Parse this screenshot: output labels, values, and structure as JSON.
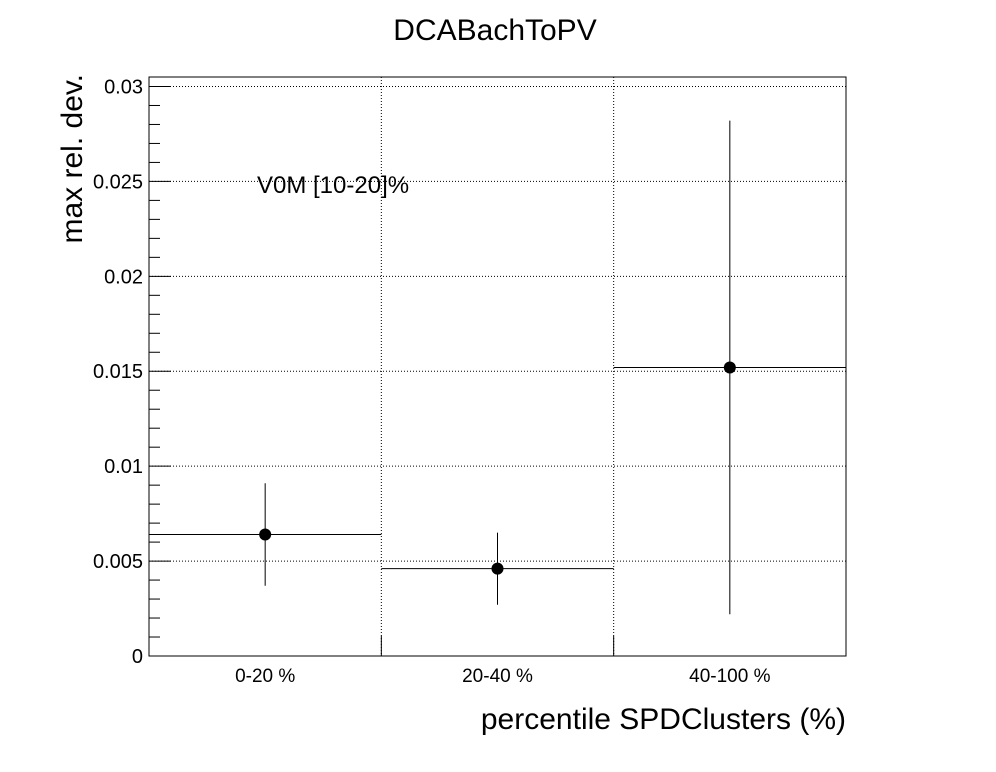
{
  "chart_data": {
    "type": "scatter",
    "title": "DCABachToPV",
    "xlabel": "percentile SPDClusters (%)",
    "ylabel": "max rel. dev.",
    "annotation": "V0M [10-20]%",
    "categories": [
      "0-20 %",
      "20-40 %",
      "40-100 %"
    ],
    "ylim": [
      0,
      0.0305
    ],
    "yticks": [
      {
        "value": 0,
        "label": "0"
      },
      {
        "value": 0.005,
        "label": "0.005"
      },
      {
        "value": 0.01,
        "label": "0.01"
      },
      {
        "value": 0.015,
        "label": "0.015"
      },
      {
        "value": 0.02,
        "label": "0.02"
      },
      {
        "value": 0.025,
        "label": "0.025"
      },
      {
        "value": 0.03,
        "label": "0.03"
      }
    ],
    "grid": true,
    "series": [
      {
        "values": [
          0.0064,
          0.0046,
          0.0152
        ],
        "errors": [
          0.0027,
          0.0019,
          0.013
        ]
      }
    ]
  }
}
